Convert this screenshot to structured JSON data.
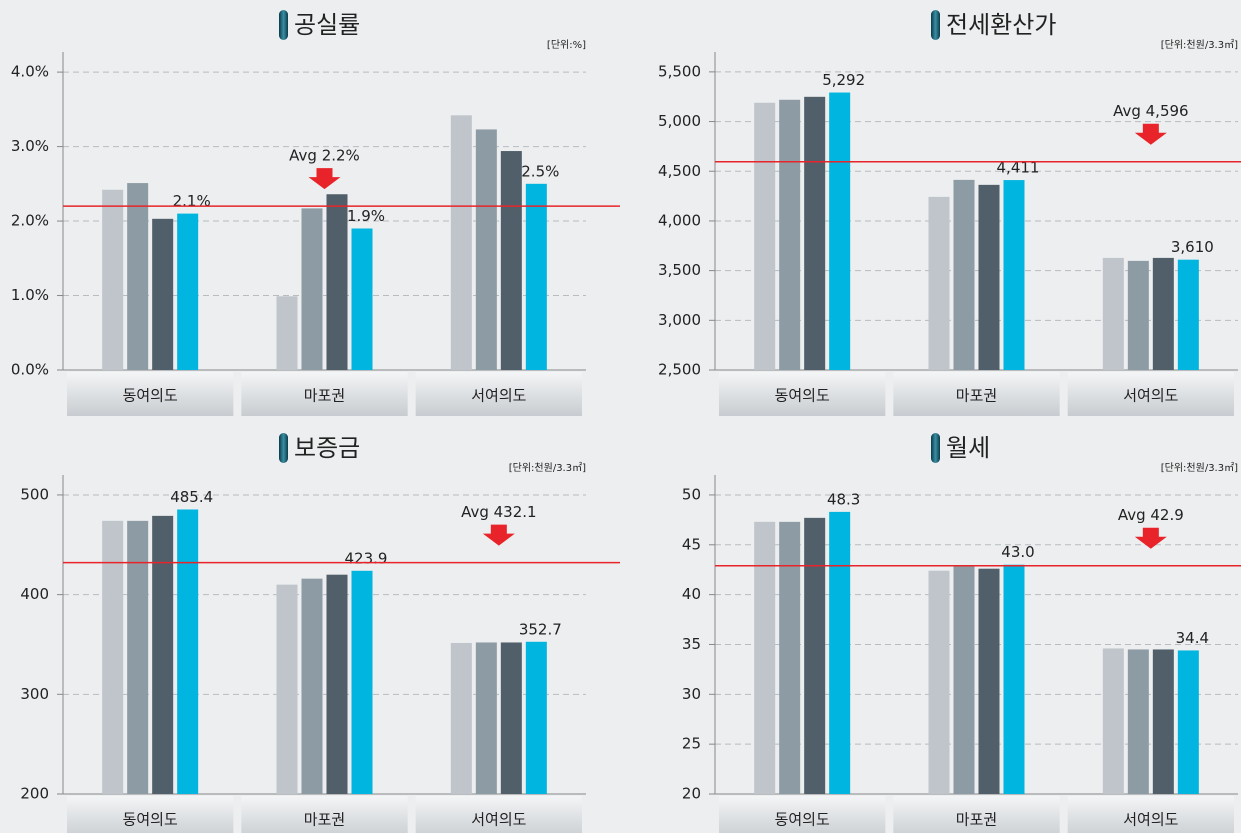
{
  "chart_data": [
    {
      "type": "bar",
      "title": "공실률",
      "unit": "[단위:%]",
      "categories": [
        "동여의도",
        "마포권",
        "서여의도"
      ],
      "series": [
        {
          "color": "#bfc5ca",
          "values": [
            2.42,
            0.99,
            3.42
          ]
        },
        {
          "color": "#8d9ba4",
          "values": [
            2.51,
            2.17,
            3.23
          ]
        },
        {
          "color": "#505f6a",
          "values": [
            2.03,
            2.36,
            2.94
          ]
        },
        {
          "color": "#00b5e0",
          "values": [
            2.1,
            1.9,
            2.5
          ],
          "value_labels": [
            "2.1%",
            "1.9%",
            "2.5%"
          ]
        }
      ],
      "ylim": [
        0,
        4.27
      ],
      "yticks": [
        {
          "value": 0,
          "label": "0.0%"
        },
        {
          "value": 1,
          "label": "1.0%"
        },
        {
          "value": 2,
          "label": "2.0%"
        },
        {
          "value": 3,
          "label": "3.0%"
        },
        {
          "value": 4,
          "label": "4.0%"
        }
      ],
      "average": {
        "value": 2.2,
        "label": "Avg 2.2%"
      },
      "grid": true
    },
    {
      "type": "bar",
      "title": "전세환산가",
      "unit": "[단위:천원/3.3㎡]",
      "categories": [
        "동여의도",
        "마포권",
        "서여의도"
      ],
      "series": [
        {
          "color": "#bfc5ca",
          "values": [
            5189,
            4242,
            3628
          ]
        },
        {
          "color": "#8d9ba4",
          "values": [
            5219,
            4413,
            3598
          ]
        },
        {
          "color": "#505f6a",
          "values": [
            5249,
            4363,
            3628
          ]
        },
        {
          "color": "#00b5e0",
          "values": [
            5292,
            4411,
            3610
          ],
          "value_labels": [
            "5,292",
            "4,411",
            "3,610"
          ]
        }
      ],
      "ylim": [
        2500,
        5700
      ],
      "yticks": [
        {
          "value": 2500,
          "label": "2,500"
        },
        {
          "value": 3000,
          "label": "3,000"
        },
        {
          "value": 3500,
          "label": "3,500"
        },
        {
          "value": 4000,
          "label": "4,000"
        },
        {
          "value": 4500,
          "label": "4,500"
        },
        {
          "value": 5000,
          "label": "5,000"
        },
        {
          "value": 5500,
          "label": "5,500"
        }
      ],
      "average": {
        "value": 4596,
        "label": "Avg 4,596"
      },
      "grid": true
    },
    {
      "type": "bar",
      "title": "보증금",
      "unit": "[단위:천원/3.3㎡]",
      "categories": [
        "동여의도",
        "마포권",
        "서여의도"
      ],
      "series": [
        {
          "color": "#bfc5ca",
          "values": [
            474,
            410,
            351.5
          ]
        },
        {
          "color": "#8d9ba4",
          "values": [
            474,
            416,
            352
          ]
        },
        {
          "color": "#505f6a",
          "values": [
            479,
            420,
            352
          ]
        },
        {
          "color": "#00b5e0",
          "values": [
            485.4,
            423.9,
            352.7
          ]
        }
      ],
      "ylim": [
        200,
        520
      ],
      "yticks": [
        200,
        300,
        400,
        500
      ],
      "average": {
        "value": 432.1,
        "label": "Avg 432.1"
      },
      "grid": true
    },
    {
      "type": "bar",
      "title": "월세",
      "unit": "[단위:천원/3.3㎡]",
      "categories": [
        "동여의도",
        "마포권",
        "서여의도"
      ],
      "series": [
        {
          "color": "#bfc5ca",
          "values": [
            47.3,
            42.4,
            34.6
          ]
        },
        {
          "color": "#8d9ba4",
          "values": [
            47.3,
            42.9,
            34.5
          ]
        },
        {
          "color": "#505f6a",
          "values": [
            47.7,
            42.6,
            34.5
          ]
        },
        {
          "color": "#00b5e0",
          "values": [
            48.3,
            43,
            34.4
          ],
          "value_labels": [
            "48.3",
            "43.0",
            "34.4"
          ]
        }
      ],
      "ylim": [
        20,
        52
      ],
      "yticks": [
        20,
        25,
        30,
        35,
        40,
        45,
        50
      ],
      "average": {
        "value": 42.9,
        "label": "Avg 42.9"
      },
      "grid": true
    }
  ]
}
